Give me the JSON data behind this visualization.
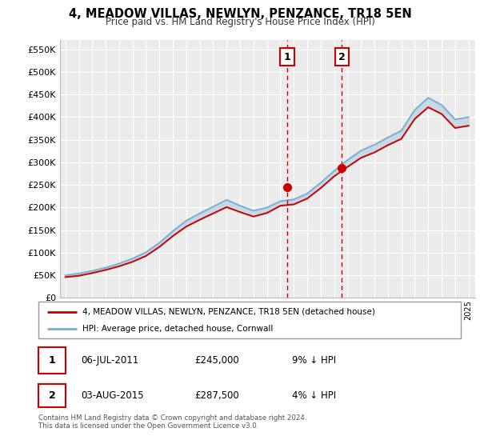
{
  "title": "4, MEADOW VILLAS, NEWLYN, PENZANCE, TR18 5EN",
  "subtitle": "Price paid vs. HM Land Registry's House Price Index (HPI)",
  "ylim": [
    0,
    570000
  ],
  "yticks": [
    0,
    50000,
    100000,
    150000,
    200000,
    250000,
    300000,
    350000,
    400000,
    450000,
    500000,
    550000
  ],
  "ytick_labels": [
    "£0",
    "£50K",
    "£100K",
    "£150K",
    "£200K",
    "£250K",
    "£300K",
    "£350K",
    "£400K",
    "£450K",
    "£500K",
    "£550K"
  ],
  "xlim_start": 1994.6,
  "xlim_end": 2025.5,
  "plot_bg_color": "#ebebeb",
  "grid_color": "#ffffff",
  "sale1_date": 2011.5,
  "sale1_price": 245000,
  "sale1_label": "1",
  "sale2_date": 2015.58,
  "sale2_price": 287500,
  "sale2_label": "2",
  "line_color_house": "#cc0000",
  "line_color_hpi": "#7ab0d4",
  "shade_color": "#b8cfe0",
  "legend_label_house": "4, MEADOW VILLAS, NEWLYN, PENZANCE, TR18 5EN (detached house)",
  "legend_label_hpi": "HPI: Average price, detached house, Cornwall",
  "footer_text": "Contains HM Land Registry data © Crown copyright and database right 2024.\nThis data is licensed under the Open Government Licence v3.0.",
  "hpi_years": [
    1995,
    1996,
    1997,
    1998,
    1999,
    2000,
    2001,
    2002,
    2003,
    2004,
    2005,
    2006,
    2007,
    2008,
    2009,
    2010,
    2011,
    2012,
    2013,
    2014,
    2015,
    2016,
    2017,
    2018,
    2019,
    2020,
    2021,
    2022,
    2023,
    2024,
    2025
  ],
  "hpi_values": [
    50000,
    54000,
    60000,
    67000,
    76000,
    87000,
    101000,
    122000,
    148000,
    171000,
    187000,
    202000,
    217000,
    204000,
    193000,
    200000,
    214000,
    218000,
    231000,
    255000,
    281000,
    305000,
    326000,
    339000,
    355000,
    370000,
    416000,
    443000,
    427000,
    395000,
    400000
  ],
  "house_years": [
    1995,
    1996,
    1997,
    1998,
    1999,
    2000,
    2001,
    2002,
    2003,
    2004,
    2005,
    2006,
    2007,
    2008,
    2009,
    2010,
    2011,
    2012,
    2013,
    2014,
    2015,
    2016,
    2017,
    2018,
    2019,
    2020,
    2021,
    2022,
    2023,
    2024,
    2025
  ],
  "house_values": [
    46000,
    49000,
    55000,
    62000,
    70000,
    80000,
    93000,
    113000,
    137000,
    158000,
    173000,
    187000,
    201000,
    190000,
    180000,
    188000,
    204000,
    207000,
    220000,
    243000,
    269000,
    290000,
    310000,
    322000,
    338000,
    352000,
    396000,
    422000,
    407000,
    376000,
    381000
  ]
}
